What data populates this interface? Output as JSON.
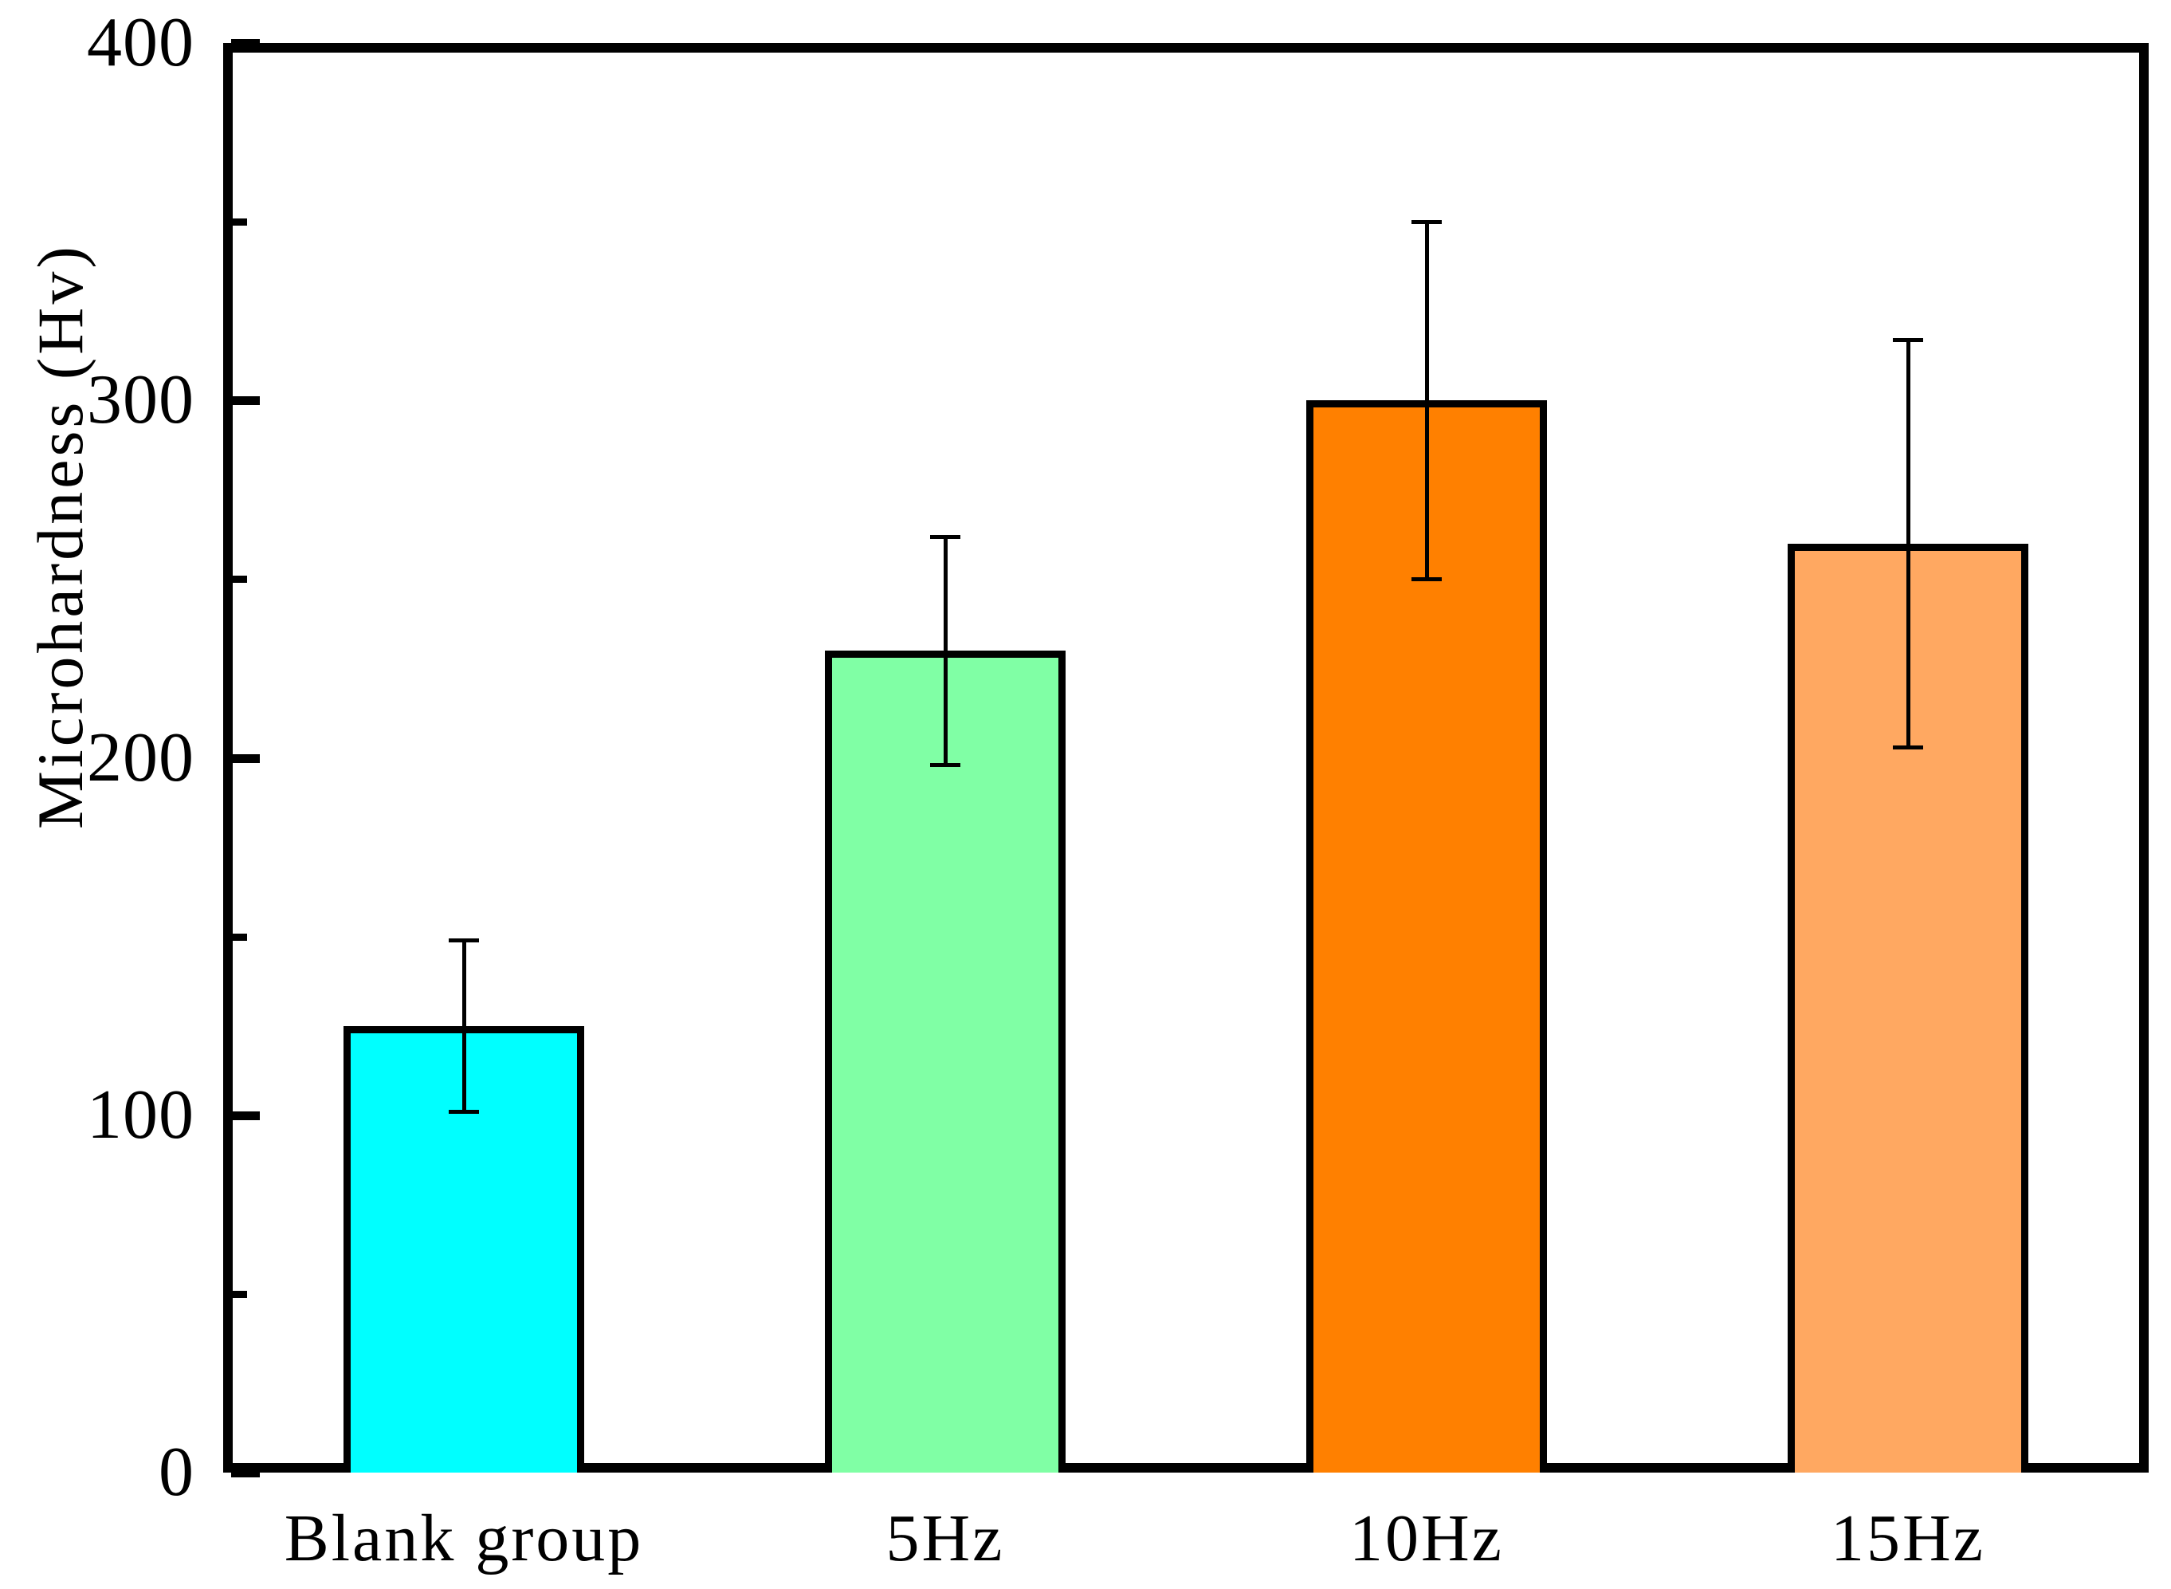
{
  "chart_data": {
    "type": "bar",
    "title": "",
    "xlabel": "",
    "ylabel": "Microhardness (Hv)",
    "ylim": [
      0,
      400
    ],
    "yticks_major": [
      0,
      100,
      200,
      300,
      400
    ],
    "yticks_minor": [
      50,
      150,
      250,
      350
    ],
    "grid": false,
    "legend": false,
    "categories": [
      "Blank group",
      "5Hz",
      "10Hz",
      "15Hz"
    ],
    "values": [
      125,
      230,
      300,
      260
    ],
    "errors": [
      24,
      32,
      50,
      57
    ],
    "bar_colors": [
      "#00FFFF",
      "#80FFA5",
      "#FF8000",
      "#FFA861"
    ],
    "bar_edge_color": "#000000",
    "axis_color": "#000000",
    "background_color": "#FFFFFF"
  }
}
